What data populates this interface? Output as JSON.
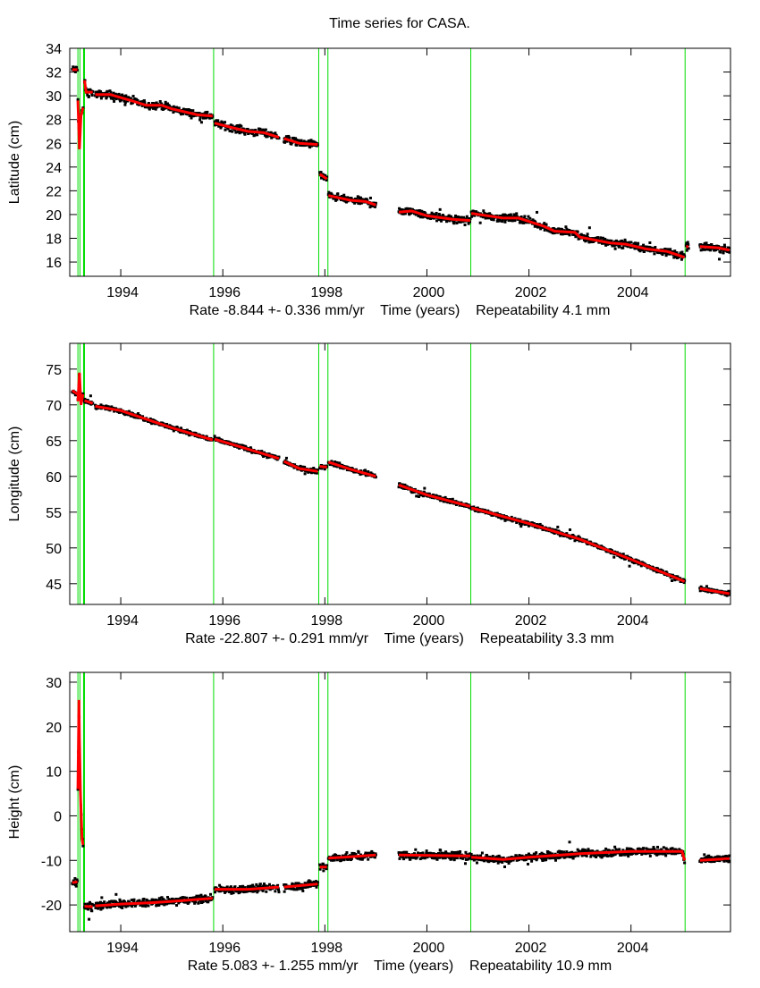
{
  "chart_data": {
    "title": "Time series for CASA.",
    "type": "scatter",
    "grid": false,
    "legend": "none",
    "colors": {
      "observations": "#000000",
      "model": "#ff0000",
      "break_lines": "#00dd00"
    },
    "xlim": [
      1993.0,
      2005.95
    ],
    "x_ticks": [
      1994,
      1996,
      1998,
      2000,
      2002,
      2004
    ],
    "break_years": [
      1993.16,
      1993.2,
      1993.28,
      1995.82,
      1997.88,
      1998.06,
      2000.86,
      2005.06
    ],
    "panels": [
      {
        "ylabel": "Latitude (cm)",
        "rate": "Rate -8.844 +- 0.336 mm/yr",
        "xlabel": "Time (years)",
        "repeatability": "Repeatability 4.1 mm",
        "ylim": [
          14.8,
          34
        ],
        "y_ticks": [
          16,
          18,
          20,
          22,
          24,
          26,
          28,
          30,
          32,
          34
        ],
        "fit_segments": [
          [
            [
              1993.05,
              32.2
            ],
            [
              1993.15,
              32.2
            ]
          ],
          [
            [
              1993.16,
              29.6
            ],
            [
              1993.19,
              25.5
            ],
            [
              1993.22,
              28.3
            ],
            [
              1993.26,
              29.0
            ]
          ],
          [
            [
              1993.29,
              31.3
            ],
            [
              1993.32,
              30.3
            ],
            [
              1993.45,
              30.3
            ]
          ],
          [
            [
              1993.5,
              30.1
            ],
            [
              1993.8,
              30.1
            ],
            [
              1994.2,
              29.6
            ],
            [
              1994.5,
              29.2
            ],
            [
              1994.8,
              29.2
            ],
            [
              1995.0,
              28.9
            ],
            [
              1995.5,
              28.4
            ],
            [
              1995.8,
              28.3
            ]
          ],
          [
            [
              1995.84,
              27.7
            ],
            [
              1996.2,
              27.3
            ],
            [
              1996.5,
              27.0
            ],
            [
              1996.8,
              26.9
            ],
            [
              1997.1,
              26.5
            ]
          ],
          [
            [
              1997.2,
              26.4
            ],
            [
              1997.5,
              26.0
            ],
            [
              1997.86,
              25.9
            ]
          ],
          [
            [
              1997.9,
              23.4
            ],
            [
              1998.04,
              23.0
            ]
          ],
          [
            [
              1998.07,
              21.6
            ],
            [
              1998.5,
              21.2
            ],
            [
              1998.8,
              21.1
            ],
            [
              1999.0,
              20.8
            ]
          ],
          [
            [
              1999.45,
              20.2
            ],
            [
              1999.7,
              20.3
            ],
            [
              2000.0,
              19.9
            ],
            [
              2000.5,
              19.6
            ],
            [
              2000.85,
              19.5
            ]
          ],
          [
            [
              2000.87,
              20.1
            ],
            [
              2001.5,
              19.7
            ],
            [
              2001.8,
              19.7
            ],
            [
              2002.3,
              19.0
            ],
            [
              2002.5,
              18.6
            ],
            [
              2002.9,
              18.5
            ],
            [
              2003.0,
              18.1
            ],
            [
              2003.6,
              17.6
            ],
            [
              2003.9,
              17.5
            ],
            [
              2004.3,
              17.1
            ],
            [
              2004.7,
              16.9
            ],
            [
              2005.05,
              16.4
            ]
          ],
          [
            [
              2005.08,
              17.3
            ],
            [
              2005.13,
              17.3
            ]
          ],
          [
            [
              2005.35,
              17.3
            ],
            [
              2005.7,
              17.2
            ],
            [
              2005.93,
              17.0
            ]
          ]
        ]
      },
      {
        "ylabel": "Longitude (cm)",
        "rate": "Rate -22.807 +- 0.291 mm/yr",
        "xlabel": "Time (years)",
        "repeatability": "Repeatability 3.3 mm",
        "ylim": [
          42.1,
          78.6
        ],
        "y_ticks": [
          45,
          50,
          55,
          60,
          65,
          70,
          75
        ],
        "fit_segments": [
          [
            [
              1993.05,
              72.0
            ],
            [
              1993.15,
              71.5
            ]
          ],
          [
            [
              1993.16,
              70.5
            ],
            [
              1993.19,
              74.5
            ],
            [
              1993.22,
              70.0
            ],
            [
              1993.26,
              71.5
            ]
          ],
          [
            [
              1993.29,
              70.6
            ],
            [
              1993.45,
              70.2
            ]
          ],
          [
            [
              1993.5,
              69.8
            ],
            [
              1994.0,
              69.2
            ],
            [
              1994.5,
              68.0
            ],
            [
              1995.0,
              66.8
            ],
            [
              1995.8,
              65.1
            ]
          ],
          [
            [
              1995.84,
              65.2
            ],
            [
              1996.5,
              63.8
            ],
            [
              1997.1,
              62.5
            ]
          ],
          [
            [
              1997.2,
              62.1
            ],
            [
              1997.5,
              61.1
            ],
            [
              1997.86,
              60.7
            ]
          ],
          [
            [
              1997.9,
              61.4
            ],
            [
              1998.04,
              61.3
            ]
          ],
          [
            [
              1998.07,
              62.0
            ],
            [
              1998.5,
              61.0
            ],
            [
              1999.0,
              60.0
            ]
          ],
          [
            [
              1999.45,
              58.8
            ],
            [
              2000.0,
              57.4
            ],
            [
              2000.85,
              55.8
            ]
          ],
          [
            [
              2000.87,
              55.6
            ],
            [
              2002.0,
              53.4
            ],
            [
              2003.0,
              51.2
            ],
            [
              2004.0,
              48.4
            ],
            [
              2005.05,
              45.3
            ]
          ],
          [
            [
              2005.35,
              44.3
            ],
            [
              2005.93,
              43.6
            ]
          ]
        ]
      },
      {
        "ylabel": "Height (cm)",
        "rate": "Rate 5.083 +- 1.255 mm/yr",
        "xlabel": "Time (years)",
        "repeatability": "Repeatability 10.9 mm",
        "ylim": [
          -26,
          32.2
        ],
        "y_ticks": [
          -20,
          -10,
          0,
          10,
          20,
          30
        ],
        "fit_segments": [
          [
            [
              1993.05,
              -15.0
            ],
            [
              1993.15,
              -14.8
            ]
          ],
          [
            [
              1993.16,
              6.0
            ],
            [
              1993.18,
              26.0
            ],
            [
              1993.19,
              17.5
            ],
            [
              1993.21,
              5.0
            ],
            [
              1993.24,
              -5.0
            ],
            [
              1993.26,
              -6.5
            ]
          ],
          [
            [
              1993.29,
              -20.3
            ],
            [
              1993.45,
              -20.4
            ]
          ],
          [
            [
              1993.5,
              -20.2
            ],
            [
              1994.0,
              -19.8
            ],
            [
              1994.6,
              -19.5
            ],
            [
              1995.0,
              -19.2
            ],
            [
              1995.8,
              -18.5
            ]
          ],
          [
            [
              1995.84,
              -16.5
            ],
            [
              1996.5,
              -16.5
            ],
            [
              1997.1,
              -16.0
            ]
          ],
          [
            [
              1997.2,
              -16.0
            ],
            [
              1997.86,
              -15.3
            ]
          ],
          [
            [
              1997.9,
              -11.5
            ],
            [
              1998.04,
              -11.5
            ]
          ],
          [
            [
              1998.07,
              -9.5
            ],
            [
              1998.5,
              -9.2
            ],
            [
              1999.0,
              -8.8
            ]
          ],
          [
            [
              1999.45,
              -8.8
            ],
            [
              2000.85,
              -9.0
            ]
          ],
          [
            [
              2000.87,
              -9.3
            ],
            [
              2001.5,
              -9.8
            ],
            [
              2002.0,
              -9.3
            ],
            [
              2003.0,
              -8.5
            ],
            [
              2004.0,
              -8.0
            ],
            [
              2005.0,
              -8.0
            ],
            [
              2005.05,
              -10.0
            ]
          ],
          [
            [
              2005.35,
              -10.0
            ],
            [
              2005.93,
              -9.6
            ]
          ]
        ]
      }
    ]
  }
}
